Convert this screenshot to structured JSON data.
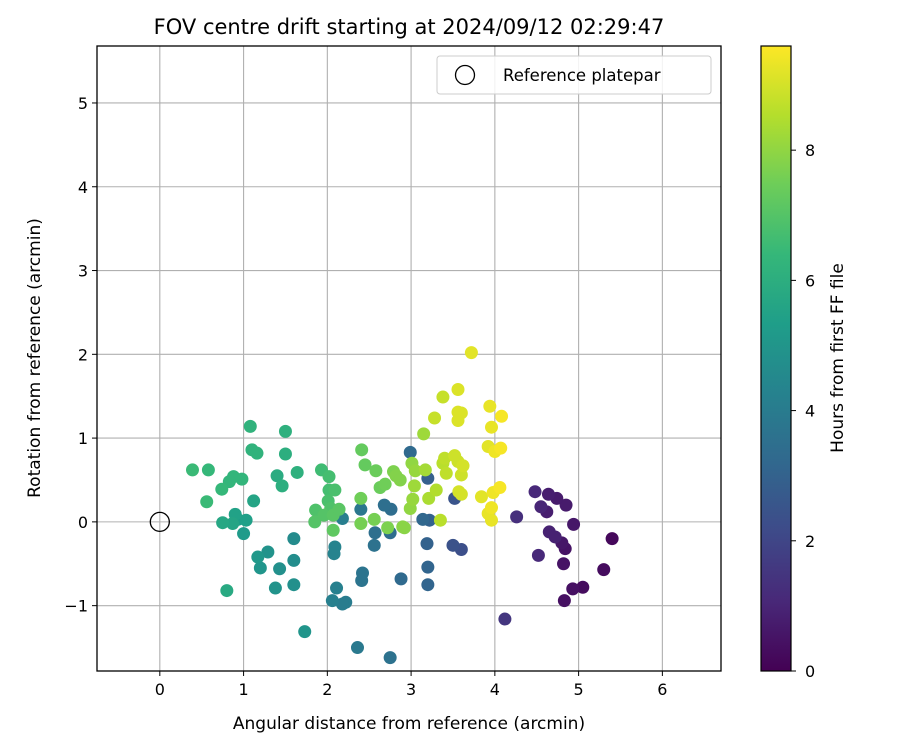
{
  "chart_data": {
    "type": "scatter",
    "title": "FOV centre drift starting at 2024/09/12 02:29:47",
    "xlabel": "Angular distance from reference (arcmin)",
    "ylabel": "Rotation from reference (arcmin)",
    "xlim": [
      -0.75,
      6.7
    ],
    "ylim": [
      -1.78,
      5.68
    ],
    "xticks": [
      0,
      1,
      2,
      3,
      4,
      5,
      6
    ],
    "yticks": [
      -1,
      0,
      1,
      2,
      3,
      4,
      5
    ],
    "grid": true,
    "legend": {
      "placement": "top-right",
      "entries": [
        "Reference platepar"
      ]
    },
    "reference_point": {
      "x": 0,
      "y": 0,
      "label": "Reference platepar"
    },
    "colorbar": {
      "label": "Hours from first FF file",
      "colormap": "viridis",
      "range": [
        0,
        9.6
      ],
      "ticks": [
        0,
        2,
        4,
        6,
        8
      ]
    },
    "series": [
      {
        "points": [
          [
            5.4,
            -0.2,
            0.2
          ],
          [
            5.3,
            -0.57,
            0.3
          ],
          [
            5.05,
            -0.78,
            0.3
          ],
          [
            4.93,
            -0.8,
            0.4
          ],
          [
            4.83,
            -0.94,
            0.4
          ],
          [
            4.82,
            -0.5,
            0.5
          ],
          [
            4.84,
            -0.32,
            0.5
          ],
          [
            4.8,
            -0.25,
            0.6
          ],
          [
            4.94,
            -0.03,
            0.6
          ],
          [
            4.85,
            0.2,
            0.7
          ],
          [
            4.74,
            0.28,
            0.7
          ],
          [
            4.64,
            0.33,
            0.8
          ],
          [
            4.62,
            0.12,
            0.8
          ],
          [
            4.65,
            -0.12,
            0.9
          ],
          [
            4.72,
            -0.18,
            0.9
          ],
          [
            4.55,
            0.18,
            1.0
          ],
          [
            4.48,
            0.36,
            1.1
          ],
          [
            4.52,
            -0.4,
            1.1
          ],
          [
            4.26,
            0.06,
            1.3
          ],
          [
            4.12,
            -1.16,
            1.5
          ],
          [
            3.6,
            -0.33,
            2.3
          ],
          [
            3.5,
            -0.28,
            2.4
          ],
          [
            3.52,
            0.28,
            2.5
          ],
          [
            3.2,
            0.52,
            2.9
          ],
          [
            3.22,
            0.02,
            3.0
          ],
          [
            3.19,
            -0.26,
            3.0
          ],
          [
            3.2,
            -0.54,
            3.1
          ],
          [
            3.2,
            -0.75,
            3.1
          ],
          [
            3.14,
            0.03,
            3.2
          ],
          [
            2.99,
            0.83,
            3.3
          ],
          [
            2.88,
            -0.68,
            3.3
          ],
          [
            2.76,
            0.15,
            3.4
          ],
          [
            2.75,
            -0.13,
            3.4
          ],
          [
            2.68,
            0.2,
            3.5
          ],
          [
            2.57,
            -0.13,
            3.5
          ],
          [
            2.56,
            -0.28,
            3.6
          ],
          [
            2.75,
            -1.62,
            3.6
          ],
          [
            2.42,
            -0.61,
            3.7
          ],
          [
            2.41,
            -0.7,
            3.7
          ],
          [
            2.4,
            0.15,
            3.8
          ],
          [
            2.36,
            -1.5,
            3.9
          ],
          [
            2.22,
            -0.96,
            4.0
          ],
          [
            2.18,
            -0.98,
            4.0
          ],
          [
            2.18,
            0.04,
            4.1
          ],
          [
            2.11,
            -0.79,
            4.2
          ],
          [
            2.06,
            -0.94,
            4.2
          ],
          [
            2.09,
            -0.3,
            4.3
          ],
          [
            2.08,
            -0.38,
            4.3
          ],
          [
            1.6,
            -0.2,
            4.6
          ],
          [
            1.6,
            -0.46,
            4.7
          ],
          [
            1.6,
            -0.75,
            4.8
          ],
          [
            1.43,
            -0.56,
            4.8
          ],
          [
            1.38,
            -0.79,
            4.9
          ],
          [
            1.29,
            -0.36,
            4.9
          ],
          [
            1.2,
            -0.55,
            5.0
          ],
          [
            1.73,
            -1.31,
            5.0
          ],
          [
            1.17,
            -0.42,
            5.1
          ],
          [
            1.0,
            -0.14,
            5.2
          ],
          [
            0.93,
            0.03,
            5.3
          ],
          [
            1.03,
            0.02,
            5.4
          ],
          [
            0.9,
            0.09,
            5.5
          ],
          [
            1.12,
            0.25,
            5.6
          ],
          [
            0.87,
            -0.02,
            5.6
          ],
          [
            0.75,
            -0.01,
            5.7
          ],
          [
            0.8,
            -0.82,
            5.8
          ],
          [
            1.4,
            0.55,
            5.9
          ],
          [
            1.46,
            0.43,
            6.0
          ],
          [
            1.5,
            0.81,
            6.0
          ],
          [
            1.64,
            0.59,
            6.1
          ],
          [
            1.5,
            1.08,
            6.1
          ],
          [
            1.08,
            1.14,
            6.2
          ],
          [
            1.1,
            0.86,
            6.2
          ],
          [
            1.16,
            0.82,
            6.2
          ],
          [
            0.98,
            0.51,
            6.3
          ],
          [
            0.88,
            0.54,
            6.3
          ],
          [
            0.83,
            0.48,
            6.3
          ],
          [
            0.74,
            0.39,
            6.4
          ],
          [
            0.58,
            0.62,
            6.4
          ],
          [
            0.39,
            0.62,
            6.5
          ],
          [
            0.56,
            0.24,
            6.5
          ],
          [
            1.93,
            0.62,
            6.6
          ],
          [
            2.02,
            0.54,
            6.7
          ],
          [
            2.02,
            0.38,
            6.7
          ],
          [
            2.09,
            0.38,
            6.8
          ],
          [
            2.01,
            0.25,
            6.8
          ],
          [
            2.04,
            0.16,
            6.9
          ],
          [
            1.86,
            0.14,
            6.9
          ],
          [
            1.85,
            0.0,
            7.0
          ],
          [
            1.96,
            0.08,
            7.0
          ],
          [
            2.07,
            0.08,
            7.1
          ],
          [
            2.14,
            0.15,
            7.1
          ],
          [
            2.07,
            -0.1,
            7.2
          ],
          [
            2.41,
            0.86,
            7.3
          ],
          [
            2.45,
            0.68,
            7.3
          ],
          [
            2.58,
            0.61,
            7.4
          ],
          [
            2.63,
            0.41,
            7.4
          ],
          [
            2.69,
            0.45,
            7.5
          ],
          [
            2.4,
            0.28,
            7.5
          ],
          [
            2.4,
            -0.02,
            7.6
          ],
          [
            2.56,
            0.03,
            7.6
          ],
          [
            2.72,
            -0.07,
            7.7
          ],
          [
            2.79,
            0.6,
            7.7
          ],
          [
            2.82,
            0.55,
            7.8
          ],
          [
            2.87,
            0.5,
            7.8
          ],
          [
            2.9,
            -0.06,
            7.9
          ],
          [
            2.92,
            -0.07,
            7.9
          ],
          [
            2.99,
            0.16,
            8.0
          ],
          [
            3.01,
            0.7,
            8.0
          ],
          [
            3.05,
            0.61,
            8.1
          ],
          [
            3.02,
            0.27,
            8.1
          ],
          [
            3.04,
            0.43,
            8.2
          ],
          [
            3.15,
            1.05,
            8.2
          ],
          [
            3.17,
            0.62,
            8.3
          ],
          [
            3.21,
            0.28,
            8.4
          ],
          [
            3.3,
            0.38,
            8.5
          ],
          [
            3.35,
            0.02,
            8.6
          ],
          [
            3.38,
            0.7,
            8.6
          ],
          [
            3.4,
            0.76,
            8.7
          ],
          [
            3.42,
            0.58,
            8.7
          ],
          [
            3.28,
            1.24,
            8.8
          ],
          [
            3.38,
            1.49,
            8.8
          ],
          [
            3.52,
            0.79,
            8.9
          ],
          [
            3.56,
            0.72,
            8.9
          ],
          [
            3.6,
            0.56,
            8.9
          ],
          [
            3.62,
            0.67,
            9.0
          ],
          [
            3.57,
            0.36,
            9.0
          ],
          [
            3.6,
            0.33,
            9.0
          ],
          [
            3.56,
            1.31,
            9.1
          ],
          [
            3.56,
            1.21,
            9.1
          ],
          [
            3.6,
            1.3,
            9.1
          ],
          [
            3.56,
            1.58,
            9.1
          ],
          [
            3.72,
            2.02,
            9.2
          ],
          [
            3.84,
            0.3,
            9.2
          ],
          [
            3.92,
            0.9,
            9.2
          ],
          [
            3.94,
            1.38,
            9.3
          ],
          [
            3.96,
            1.13,
            9.3
          ],
          [
            3.92,
            0.1,
            9.3
          ],
          [
            3.96,
            0.02,
            9.3
          ],
          [
            3.96,
            0.17,
            9.4
          ],
          [
            3.98,
            0.35,
            9.4
          ],
          [
            4.0,
            0.84,
            9.4
          ],
          [
            4.06,
            0.41,
            9.5
          ],
          [
            4.07,
            0.88,
            9.5
          ],
          [
            4.08,
            1.26,
            9.5
          ]
        ]
      }
    ]
  }
}
